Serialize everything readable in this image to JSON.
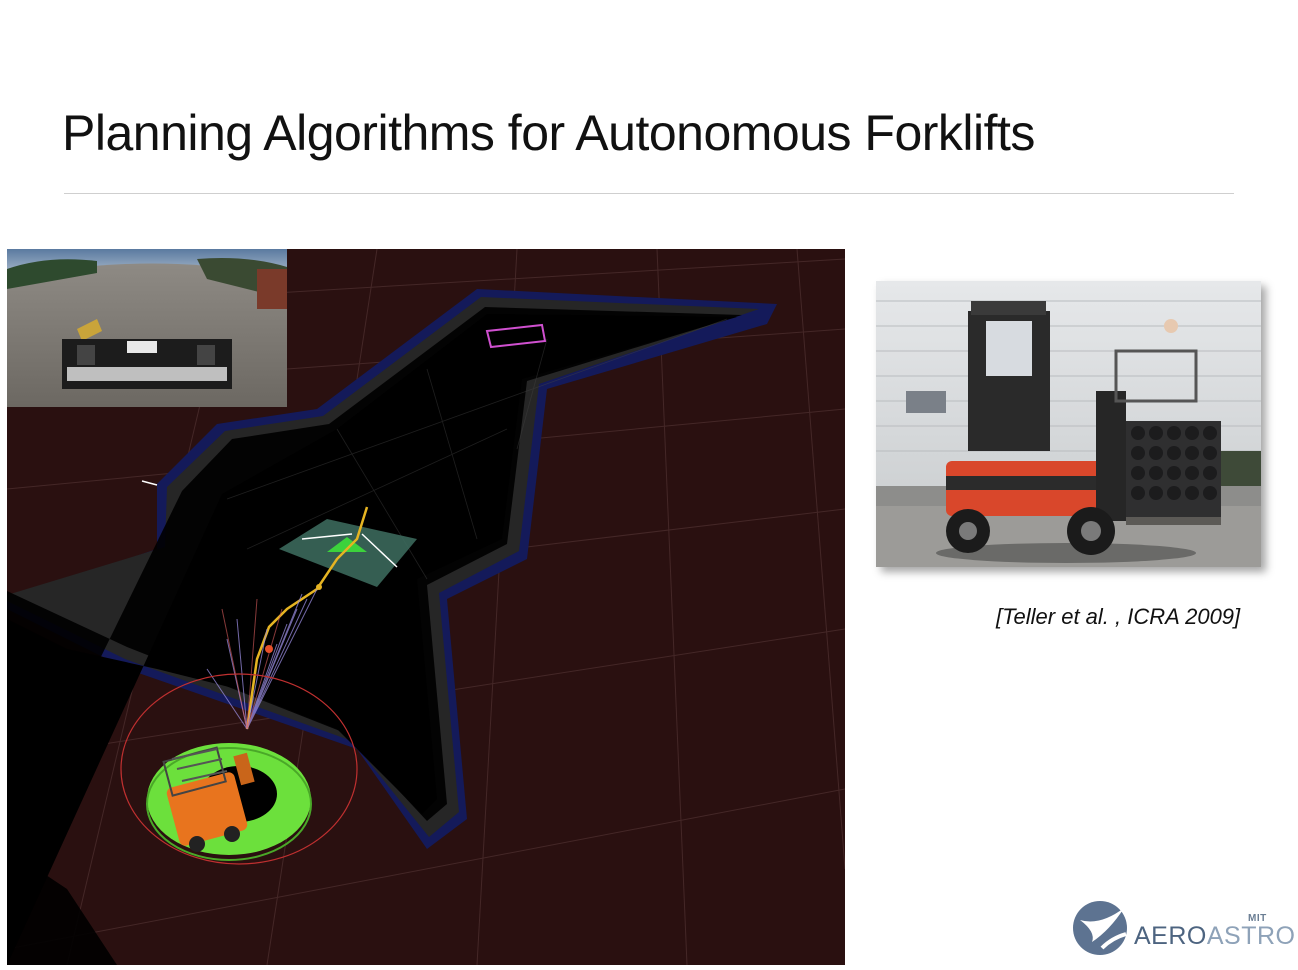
{
  "slide": {
    "title": "Planning Algorithms for Autonomous Forklifts",
    "citation": "[Teller et al. , ICRA 2009]"
  },
  "logo": {
    "small_label": "MIT",
    "word_part1": "AERO",
    "word_part2": "ASTRO"
  },
  "colors": {
    "grid_background": "#2a1010",
    "free_space": "#000000",
    "inflation_boundary": "#1a237e",
    "footprint_green": "#6ce03c",
    "forklift_orange": "#e8741e",
    "goal_magenta": "#d050d0",
    "path_yellow": "#e6b422"
  },
  "icons": {
    "logo_mark": "aeroastro-swoosh-logo"
  }
}
